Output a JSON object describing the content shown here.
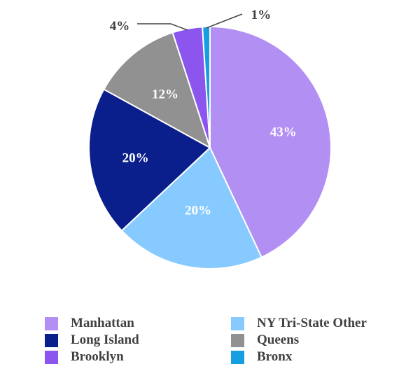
{
  "chart_data": {
    "type": "pie",
    "categories": [
      "Manhattan",
      "NY Tri-State Other",
      "Long Island",
      "Queens",
      "Brooklyn",
      "Bronx"
    ],
    "values": [
      43,
      20,
      20,
      12,
      4,
      1
    ],
    "labels": [
      "43%",
      "20%",
      "20%",
      "12%",
      "4%",
      "1%"
    ],
    "colors": [
      "#b28ff3",
      "#87caff",
      "#0a1e8c",
      "#919191",
      "#8b55ee",
      "#159fe0"
    ],
    "legend": {
      "position": "bottom",
      "items": [
        {
          "label": "Manhattan",
          "color": "#b28ff3"
        },
        {
          "label": "NY Tri-State Other",
          "color": "#87caff"
        },
        {
          "label": "Long Island",
          "color": "#0a1e8c"
        },
        {
          "label": "Queens",
          "color": "#919191"
        },
        {
          "label": "Brooklyn",
          "color": "#8b55ee"
        },
        {
          "label": "Bronx",
          "color": "#159fe0"
        }
      ]
    }
  }
}
